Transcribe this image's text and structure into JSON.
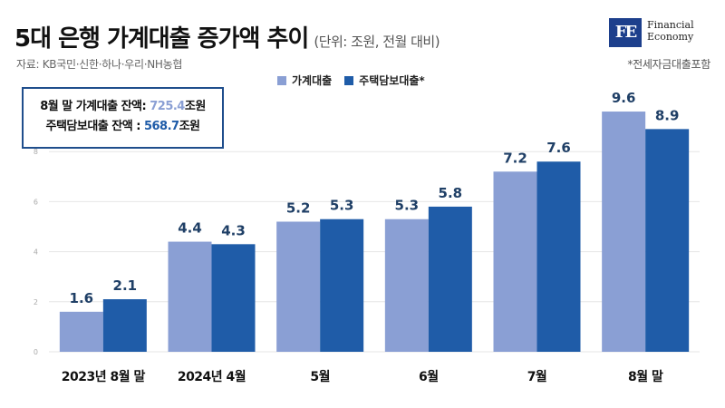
{
  "title": "5대 은행 가계대출 증가액 추이",
  "unit_note": "(단위: 조원, 전월 대비)",
  "source": "자료: KB국민·신한·하나·우리·NH농협",
  "footnote": "*전세자금대출포함",
  "logo": {
    "mark": "FE",
    "line1": "Financial",
    "line2": "Economy"
  },
  "info_box": {
    "line1_label": "8월 말 가계대출 잔액: ",
    "line1_value": "725.4",
    "line1_unit": "조원",
    "line2_label": "주택담보대출 잔액 : ",
    "line2_value": "568.7",
    "line2_unit": "조원"
  },
  "colors": {
    "series1": "#8a9fd4",
    "series2": "#1f5ca8",
    "label": "#1f3f66"
  },
  "chart_data": {
    "type": "bar",
    "categories": [
      "2023년 8월 말",
      "2024년 4월",
      "5월",
      "6월",
      "7월",
      "8월 말"
    ],
    "series": [
      {
        "name": "가계대출",
        "values": [
          1.6,
          4.4,
          5.2,
          5.3,
          7.2,
          9.6
        ]
      },
      {
        "name": "주택담보대출*",
        "values": [
          2.1,
          4.3,
          5.3,
          5.8,
          7.6,
          8.9
        ]
      }
    ],
    "ylim": [
      0,
      10
    ],
    "yticks": [
      0,
      2,
      4,
      6,
      8
    ],
    "grid": true,
    "legend_position": "top"
  }
}
